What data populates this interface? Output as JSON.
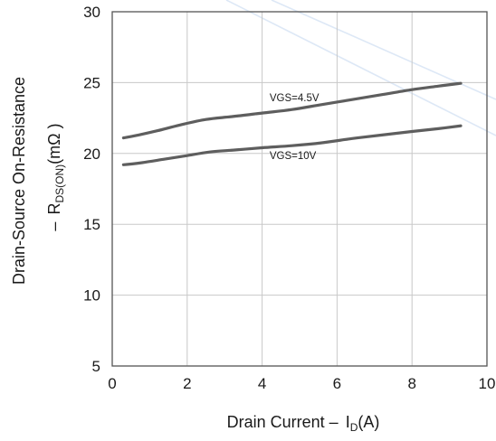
{
  "chart_data": {
    "type": "line",
    "xlabel": {
      "prefix": "Drain Current ",
      "dash": "–",
      "symbol": "I",
      "sub": "D",
      "unit": "(A)"
    },
    "ylabel": {
      "line1": "Drain-Source On-Resistance",
      "dash": "–",
      "symbol": "R",
      "sub": "DS(ON)",
      "unit": "(mΩ )"
    },
    "xlim": [
      0,
      10
    ],
    "ylim": [
      5,
      30
    ],
    "x_ticks": [
      "0",
      "2",
      "4",
      "6",
      "8",
      "10"
    ],
    "y_ticks": [
      "5",
      "10",
      "15",
      "20",
      "25",
      "30"
    ],
    "grid": true,
    "series": [
      {
        "name": "VGS=4.5V",
        "color": "#5e5e5e",
        "x": [
          0.3,
          0.7,
          1.2,
          1.8,
          2.5,
          3.2,
          4.0,
          4.8,
          5.6,
          6.4,
          7.2,
          8.0,
          8.7,
          9.3
        ],
        "y": [
          21.1,
          21.3,
          21.6,
          22.0,
          22.4,
          22.6,
          22.85,
          23.1,
          23.45,
          23.8,
          24.15,
          24.5,
          24.75,
          24.95
        ]
      },
      {
        "name": "VGS=10V",
        "color": "#5e5e5e",
        "x": [
          0.3,
          0.8,
          1.4,
          2.0,
          2.6,
          3.3,
          4.0,
          4.8,
          5.6,
          6.4,
          7.2,
          8.0,
          8.7,
          9.3
        ],
        "y": [
          19.2,
          19.35,
          19.6,
          19.85,
          20.1,
          20.25,
          20.4,
          20.55,
          20.75,
          21.05,
          21.3,
          21.55,
          21.75,
          21.95
        ]
      }
    ]
  }
}
